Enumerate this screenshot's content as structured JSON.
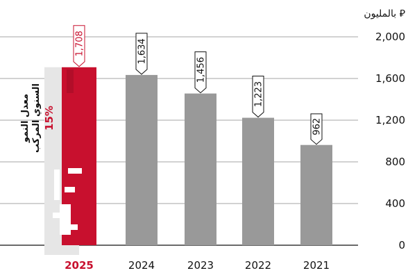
{
  "colors": {
    "bar": "#999999",
    "highlight": "#c8102e",
    "grid": "#888888",
    "axis": "#111111",
    "shadow": "#e6e6e6"
  },
  "chart_data": {
    "type": "bar",
    "unit_label": "بالمليون ⃁",
    "categories": [
      "2025",
      "2024",
      "2023",
      "2022",
      "2021"
    ],
    "values": [
      1708,
      1634,
      1456,
      1223,
      962
    ],
    "value_labels": [
      "1,708",
      "1,634",
      "1,456",
      "1,223",
      "962"
    ],
    "highlight_category": "2025",
    "ylim": [
      0,
      2000
    ],
    "yticks": [
      0,
      400,
      800,
      1200,
      1600,
      2000
    ],
    "ytick_labels": [
      "0",
      "400",
      "800",
      "1,200",
      "1,600",
      "2,000"
    ],
    "axis_side": "right",
    "grid": true,
    "annotation": {
      "line1": "معدل النمو",
      "line2": "السنوي المركب",
      "value": "15%"
    }
  }
}
